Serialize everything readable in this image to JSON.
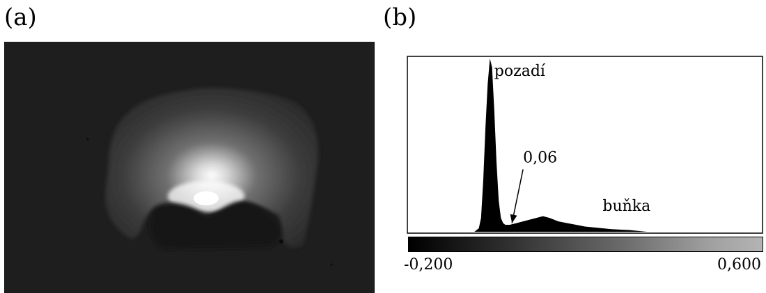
{
  "panels": {
    "a": {
      "label": "(a)"
    },
    "b": {
      "label": "(b)"
    }
  },
  "chart_data": {
    "type": "area",
    "title": "",
    "xlabel": "",
    "ylabel": "",
    "xlim": [
      -0.2,
      0.6
    ],
    "x": [
      -0.2,
      -0.05,
      -0.04,
      -0.035,
      -0.03,
      -0.025,
      -0.02,
      -0.015,
      -0.01,
      -0.005,
      0.0,
      0.005,
      0.01,
      0.015,
      0.02,
      0.03,
      0.045,
      0.06,
      0.075,
      0.09,
      0.105,
      0.12,
      0.14,
      0.16,
      0.18,
      0.2,
      0.22,
      0.24,
      0.26,
      0.3,
      0.34,
      0.6
    ],
    "values": [
      0,
      0,
      0.02,
      0.08,
      0.3,
      0.6,
      0.85,
      1.0,
      0.95,
      0.7,
      0.4,
      0.18,
      0.08,
      0.05,
      0.04,
      0.04,
      0.05,
      0.06,
      0.07,
      0.08,
      0.09,
      0.08,
      0.06,
      0.05,
      0.04,
      0.03,
      0.025,
      0.02,
      0.015,
      0.01,
      0.0,
      0
    ],
    "colorbar_ticks": [
      "-0,200",
      "0,600"
    ],
    "annotations": [
      {
        "text": "pozadí",
        "x": -0.005,
        "y": 0.9
      },
      {
        "text": "0,06",
        "x": 0.06,
        "y": 0.4
      },
      {
        "text": "buňka",
        "x": 0.24,
        "y": 0.12
      }
    ],
    "arrow": {
      "from": [
        0.06,
        0.36
      ],
      "to": [
        0.035,
        0.05
      ]
    }
  }
}
